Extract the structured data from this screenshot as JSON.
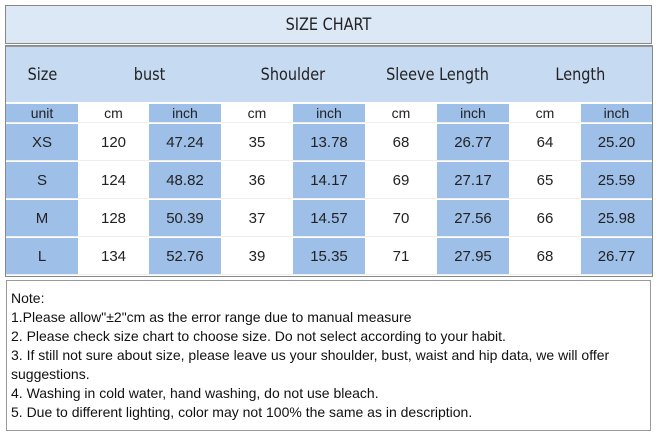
{
  "header": {
    "title": "SIZE CHART"
  },
  "table": {
    "columns": [
      "Size",
      "bust",
      "Shoulder",
      "Sleeve Length",
      "Length"
    ],
    "units": [
      "unit",
      "cm",
      "inch",
      "cm",
      "inch",
      "cm",
      "inch",
      "cm",
      "inch"
    ],
    "rows": [
      [
        "XS",
        "120",
        "47.24",
        "35",
        "13.78",
        "68",
        "26.77",
        "64",
        "25.20"
      ],
      [
        "S",
        "124",
        "48.82",
        "36",
        "14.17",
        "69",
        "27.17",
        "65",
        "25.59"
      ],
      [
        "M",
        "128",
        "50.39",
        "37",
        "14.57",
        "70",
        "27.56",
        "66",
        "25.98"
      ],
      [
        "L",
        "134",
        "52.76",
        "39",
        "15.35",
        "71",
        "27.95",
        "68",
        "26.77"
      ]
    ]
  },
  "notes": {
    "label": "Note:",
    "lines": [
      "1.Please allow\"±2\"cm as the error range due to manual measure",
      "2. Please check size chart to choose size. Do not select according to your habit.",
      "3. If still not sure about size, please leave us your shoulder, bust, waist and hip data, we will offer suggestions.",
      "4. Washing in cold water, hand washing, do not use bleach.",
      "5. Due to different lighting, color may not 100% the same as in description."
    ]
  }
}
